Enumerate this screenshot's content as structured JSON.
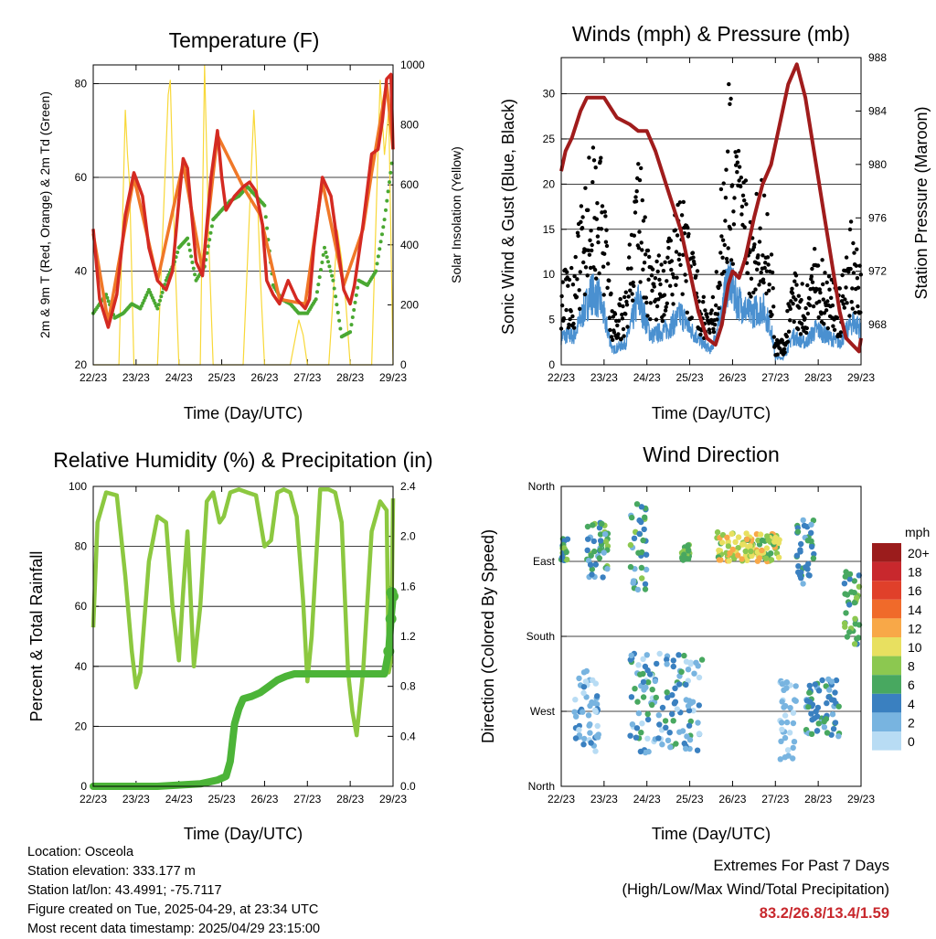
{
  "day_ticks": [
    "22/23",
    "23/23",
    "24/23",
    "25/23",
    "26/23",
    "27/23",
    "28/23",
    "29/23"
  ],
  "time_label": "Time (Day/UTC)",
  "panels": {
    "temperature": {
      "title": "Temperature (F)",
      "ylabel_left": "2m & 9m T (Red, Orange) & 2m Td (Green)",
      "ylabel_right": "Solar Insolation (Yellow)",
      "yticks_left": [
        "20",
        "40",
        "60",
        "80"
      ],
      "yticks_right": [
        "0",
        "200",
        "400",
        "600",
        "800",
        "1000"
      ]
    },
    "wind": {
      "title": "Winds (mph) & Pressure (mb)",
      "ylabel_left": "Sonic Wind & Gust (Blue, Black)",
      "ylabel_right": "Station Pressure (Maroon)",
      "yticks_left": [
        "0",
        "5",
        "10",
        "15",
        "20",
        "25",
        "30"
      ],
      "yticks_right": [
        "968",
        "972",
        "976",
        "980",
        "984",
        "988"
      ]
    },
    "humidity": {
      "title": "Relative Humidity (%) & Precipitation (in)",
      "ylabel_left": "Percent & Total Rainfall",
      "yticks_left": [
        "0",
        "20",
        "40",
        "60",
        "80",
        "100"
      ],
      "yticks_right": [
        "0.0",
        "0.4",
        "0.8",
        "1.2",
        "1.6",
        "2.0",
        "2.4"
      ]
    },
    "direction": {
      "title": "Wind Direction",
      "ylabel_left": "Direction (Colored By Speed)",
      "yticks_left": [
        "North",
        "East",
        "South",
        "West",
        "North"
      ],
      "legend_title": "mph",
      "legend_labels": [
        "20+",
        "18",
        "16",
        "14",
        "12",
        "10",
        "8",
        "6",
        "4",
        "2",
        "0"
      ],
      "legend_colors": [
        "#9b1c1c",
        "#c8282d",
        "#e0402a",
        "#f06a2a",
        "#f8a848",
        "#e8e060",
        "#8cc850",
        "#48a860",
        "#3a80c0",
        "#78b4e0",
        "#b8dcf4"
      ]
    }
  },
  "chart_data": [
    {
      "type": "line",
      "title": "Temperature (F)",
      "xlabel": "Time (Day/UTC)",
      "ylabel": "2m & 9m T (Red, Orange) & 2m Td (Green)",
      "ylim": [
        20,
        84
      ],
      "y2label": "Solar Insolation (Yellow)",
      "y2lim": [
        0,
        1000
      ],
      "categories": [
        "22/23",
        "23/23",
        "24/23",
        "25/23",
        "26/23",
        "27/23",
        "28/23",
        "29/23"
      ],
      "xlim": [
        0,
        7
      ],
      "series": [
        {
          "name": "2m T",
          "color": "#d42a22",
          "axis": "left",
          "x": [
            0,
            0.15,
            0.35,
            0.55,
            0.75,
            0.95,
            1.15,
            1.3,
            1.5,
            1.7,
            1.85,
            2.0,
            2.1,
            2.2,
            2.4,
            2.55,
            2.75,
            2.9,
            3.0,
            3.1,
            3.3,
            3.5,
            3.65,
            3.8,
            3.95,
            4.05,
            4.2,
            4.35,
            4.55,
            4.75,
            4.85,
            4.95,
            5.05,
            5.15,
            5.35,
            5.55,
            5.7,
            5.85,
            6.0,
            6.1,
            6.3,
            6.5,
            6.65,
            6.75,
            6.85,
            6.95,
            7.0
          ],
          "y": [
            49,
            34,
            28,
            35,
            52,
            61,
            56,
            45,
            38,
            36,
            40,
            55,
            64,
            62,
            42,
            39,
            60,
            70,
            60,
            53,
            56,
            58,
            59,
            57,
            50,
            38,
            35,
            33,
            38,
            34,
            33,
            32,
            34,
            45,
            60,
            56,
            46,
            36,
            33,
            37,
            50,
            65,
            66,
            72,
            81,
            82,
            66
          ]
        },
        {
          "name": "9m T",
          "color": "#f07828",
          "axis": "left",
          "x": [
            0,
            0.35,
            0.95,
            1.5,
            2.1,
            2.55,
            2.9,
            3.5,
            3.9,
            4.35,
            4.95,
            5.35,
            5.85,
            6.3,
            6.5,
            6.85,
            7.0
          ],
          "y": [
            48,
            29,
            60,
            38,
            63,
            40,
            69,
            58,
            52,
            34,
            33,
            59,
            37,
            49,
            61,
            80,
            66
          ]
        },
        {
          "name": "2m Td",
          "color": "#4aa832",
          "axis": "left",
          "x": [
            0,
            0.3,
            0.5,
            0.7,
            0.9,
            1.1,
            1.3,
            1.5,
            1.7,
            1.9,
            2.0,
            2.2,
            2.4,
            2.6,
            2.8,
            3.0,
            3.2,
            3.4,
            3.6,
            3.8,
            4.0,
            4.2,
            4.4,
            4.6,
            4.8,
            5.0,
            5.2,
            5.4,
            5.6,
            5.8,
            6.0,
            6.2,
            6.4,
            6.6,
            6.8,
            7.0
          ],
          "y": [
            31,
            35,
            30,
            31,
            33,
            32,
            36,
            32,
            38,
            42,
            45,
            47,
            38,
            41,
            51,
            53,
            55,
            56,
            58,
            56,
            54,
            37,
            34,
            33,
            31,
            31,
            34,
            45,
            38,
            26,
            27,
            38,
            37,
            40,
            51,
            65
          ]
        },
        {
          "name": "Solar Insolation",
          "color": "#f8d838",
          "axis": "right",
          "x": [
            0,
            0.6,
            0.75,
            0.8,
            0.85,
            0.95,
            1.5,
            1.75,
            1.8,
            1.9,
            2.0,
            2.5,
            2.6,
            2.65,
            2.7,
            2.8,
            3.5,
            3.75,
            3.8,
            3.9,
            4.0,
            4.6,
            4.8,
            4.9,
            5.0,
            5.5,
            5.7,
            5.8,
            5.9,
            6.0,
            6.5,
            6.7,
            6.8,
            6.9,
            7.0
          ],
          "y": [
            0,
            0,
            850,
            700,
            600,
            0,
            0,
            900,
            950,
            400,
            0,
            0,
            1000,
            700,
            400,
            0,
            0,
            850,
            700,
            300,
            0,
            0,
            150,
            100,
            0,
            0,
            450,
            350,
            200,
            0,
            0,
            950,
            700,
            850,
            0
          ]
        }
      ]
    },
    {
      "type": "line",
      "title": "Winds (mph) & Pressure (mb)",
      "xlabel": "Time (Day/UTC)",
      "ylabel": "Sonic Wind & Gust (Blue, Black)",
      "ylim": [
        0,
        34
      ],
      "y2label": "Station Pressure (Maroon)",
      "y2lim": [
        965,
        988
      ],
      "categories": [
        "22/23",
        "23/23",
        "24/23",
        "25/23",
        "26/23",
        "27/23",
        "28/23",
        "29/23"
      ],
      "xlim": [
        0,
        7
      ],
      "series": [
        {
          "name": "Station Pressure",
          "color": "#a01c1c",
          "axis": "right",
          "x": [
            0,
            0.1,
            0.25,
            0.45,
            0.6,
            0.8,
            1.0,
            1.1,
            1.3,
            1.6,
            1.8,
            2.0,
            2.2,
            2.5,
            2.8,
            3.0,
            3.2,
            3.4,
            3.6,
            3.75,
            3.9,
            4.0,
            4.15,
            4.3,
            4.5,
            4.7,
            4.9,
            5.1,
            5.3,
            5.5,
            5.7,
            5.9,
            6.1,
            6.3,
            6.5,
            6.65,
            6.8,
            6.95,
            7.0
          ],
          "y": [
            979.5,
            981,
            982,
            984,
            985,
            985,
            985,
            984.5,
            983.5,
            983,
            982.5,
            982.5,
            981,
            978,
            975,
            972,
            969,
            967,
            966.5,
            968,
            971,
            972,
            971.5,
            973,
            976,
            978.5,
            980,
            983,
            986,
            987.5,
            985,
            981,
            977,
            973,
            969,
            967,
            966.5,
            966,
            967
          ]
        }
      ]
    },
    {
      "type": "line",
      "title": "Relative Humidity (%) & Precipitation (in)",
      "xlabel": "Time (Day/UTC)",
      "ylabel": "Percent & Total Rainfall",
      "ylim": [
        0,
        100
      ],
      "y2lim": [
        0,
        2.4
      ],
      "categories": [
        "22/23",
        "23/23",
        "24/23",
        "25/23",
        "26/23",
        "27/23",
        "28/23",
        "29/23"
      ],
      "xlim": [
        0,
        7
      ],
      "series": [
        {
          "name": "Relative Humidity",
          "color": "#8cc840",
          "axis": "left",
          "x": [
            0,
            0.1,
            0.3,
            0.55,
            0.75,
            0.9,
            1.0,
            1.1,
            1.3,
            1.5,
            1.7,
            1.85,
            2.0,
            2.1,
            2.2,
            2.35,
            2.5,
            2.65,
            2.8,
            2.95,
            3.05,
            3.2,
            3.4,
            3.6,
            3.8,
            4.0,
            4.15,
            4.3,
            4.45,
            4.6,
            4.75,
            4.9,
            5.0,
            5.1,
            5.3,
            5.5,
            5.65,
            5.8,
            5.95,
            6.05,
            6.15,
            6.3,
            6.5,
            6.7,
            6.85,
            6.9,
            6.95,
            7.0
          ],
          "y": [
            53,
            88,
            98,
            97,
            70,
            45,
            33,
            38,
            75,
            90,
            88,
            60,
            42,
            65,
            85,
            40,
            60,
            95,
            98,
            88,
            90,
            98,
            99,
            98,
            97,
            80,
            82,
            98,
            99,
            98,
            90,
            62,
            35,
            50,
            99,
            99,
            98,
            88,
            38,
            25,
            17,
            38,
            85,
            95,
            92,
            38,
            42,
            96
          ]
        },
        {
          "name": "Total Rainfall",
          "color": "#4cb438",
          "axis": "right",
          "x": [
            0,
            1.5,
            2.5,
            2.9,
            3.1,
            3.2,
            3.3,
            3.4,
            3.5,
            3.7,
            3.9,
            4.1,
            4.3,
            4.5,
            4.7,
            5.0,
            6.0,
            6.8,
            6.9,
            6.95,
            7.0
          ],
          "y": [
            0.0,
            0.0,
            0.02,
            0.05,
            0.08,
            0.2,
            0.5,
            0.62,
            0.7,
            0.72,
            0.75,
            0.8,
            0.85,
            0.88,
            0.9,
            0.9,
            0.9,
            0.9,
            1.08,
            1.34,
            1.52
          ]
        }
      ]
    },
    {
      "type": "scatter",
      "title": "Wind Direction",
      "xlabel": "Time (Day/UTC)",
      "ylabel": "Direction (Colored By Speed)",
      "ylim": [
        0,
        360
      ],
      "yticklabels": [
        "North",
        "East",
        "South",
        "West",
        "North"
      ],
      "categories": [
        "22/23",
        "23/23",
        "24/23",
        "25/23",
        "26/23",
        "27/23",
        "28/23",
        "29/23"
      ],
      "xlim": [
        0,
        7
      ],
      "clusters": [
        {
          "x": [
            0.0,
            0.15
          ],
          "dir": [
            270,
            300
          ],
          "speed": [
            4,
            8
          ]
        },
        {
          "x": [
            0.3,
            0.9
          ],
          "dir": [
            40,
            140
          ],
          "speed": [
            0,
            4
          ]
        },
        {
          "x": [
            0.6,
            1.1
          ],
          "dir": [
            250,
            320
          ],
          "speed": [
            2,
            8
          ]
        },
        {
          "x": [
            1.6,
            2.0
          ],
          "dir": [
            230,
            340
          ],
          "speed": [
            2,
            8
          ]
        },
        {
          "x": [
            1.6,
            3.3
          ],
          "dir": [
            40,
            160
          ],
          "speed": [
            0,
            6
          ]
        },
        {
          "x": [
            2.8,
            3.0
          ],
          "dir": [
            270,
            290
          ],
          "speed": [
            5,
            8
          ]
        },
        {
          "x": [
            3.6,
            5.1
          ],
          "dir": [
            270,
            305
          ],
          "speed": [
            6,
            12
          ]
        },
        {
          "x": [
            5.5,
            5.9
          ],
          "dir": [
            240,
            320
          ],
          "speed": [
            2,
            6
          ]
        },
        {
          "x": [
            5.1,
            5.5
          ],
          "dir": [
            30,
            130
          ],
          "speed": [
            0,
            3
          ]
        },
        {
          "x": [
            5.7,
            6.5
          ],
          "dir": [
            60,
            130
          ],
          "speed": [
            2,
            6
          ]
        },
        {
          "x": [
            6.6,
            7.0
          ],
          "dir": [
            170,
            260
          ],
          "speed": [
            4,
            8
          ]
        }
      ]
    }
  ],
  "footer": {
    "location": "Location: Osceola",
    "elevation": "Station elevation: 333.177 m",
    "latlon": "Station lat/lon: 43.4991; -75.7117",
    "created": "Figure created on Tue, 2025-04-29, at 23:34 UTC",
    "recent": "Most recent data timestamp: 2025/04/29 23:15:00",
    "extremes_title": "Extremes For Past 7 Days",
    "extremes_subtitle": "(High/Low/Max Wind/Total Precipitation)",
    "extremes_values": "83.2/26.8/13.4/1.59"
  }
}
